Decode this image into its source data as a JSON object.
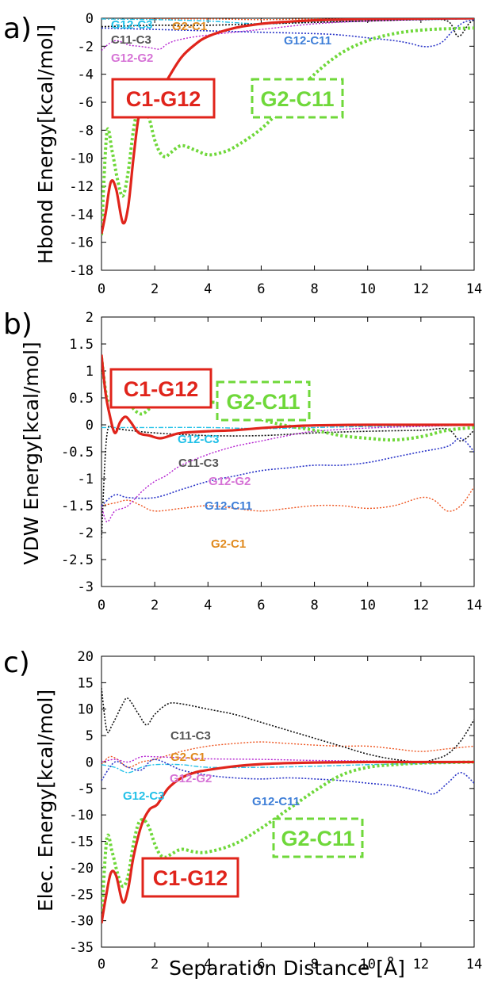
{
  "xlabel": "Separation Distance  [Å]",
  "colors": {
    "C1-G12": "#e0241b",
    "G2-C11": "#6fd83a",
    "G12-C3": "#23c1e8",
    "G2-C1": "#e08a1e",
    "C11-C3": "#111111",
    "G12-G2": "#d673d6",
    "G12-C11": "#2a35c8",
    "G2-C1-line": "#ee5520",
    "G12-G2-line": "#b420d0",
    "C11-C3-label": "#555555",
    "G12-C11-label": "#3f7fd8"
  },
  "chart_data": [
    {
      "type": "line",
      "panel": "a)",
      "ylabel": "Hbond Energy[kcal/mol]",
      "xlim": [
        0,
        14
      ],
      "ylim": [
        -18,
        0
      ],
      "xticks": [
        0,
        2,
        4,
        6,
        8,
        10,
        12,
        14
      ],
      "yticks": [
        0,
        -2,
        -4,
        -6,
        -8,
        -10,
        -12,
        -14,
        -16,
        -18
      ],
      "series": [
        {
          "name": "C1-G12",
          "x": [
            0,
            0.15,
            0.35,
            0.55,
            0.8,
            1.0,
            1.2,
            1.4,
            1.6,
            1.8,
            2.0,
            2.3,
            2.5,
            3,
            3.5,
            4,
            5,
            6,
            7,
            8,
            9,
            10,
            11,
            12,
            13,
            14
          ],
          "y": [
            -15.4,
            -14,
            -11.7,
            -12.2,
            -14.6,
            -13.5,
            -10,
            -7,
            -6.1,
            -5.8,
            -5.5,
            -5.1,
            -4.3,
            -2.8,
            -1.9,
            -1.3,
            -0.7,
            -0.4,
            -0.25,
            -0.15,
            -0.1,
            -0.05,
            -0.03,
            -0.02,
            -0.01,
            0
          ]
        },
        {
          "name": "G2-C11",
          "x": [
            0,
            0.2,
            0.4,
            0.6,
            0.8,
            1.0,
            1.2,
            1.4,
            1.6,
            1.8,
            2.0,
            2.2,
            2.4,
            2.6,
            3.0,
            3.5,
            4.0,
            4.5,
            5,
            6,
            7,
            8,
            9,
            10,
            11,
            12,
            13,
            14
          ],
          "y": [
            -15.5,
            -8.2,
            -9.5,
            -11.5,
            -12.7,
            -11,
            -8,
            -6.2,
            -6.1,
            -7.2,
            -8.7,
            -9.6,
            -9.9,
            -9.6,
            -9.1,
            -9.4,
            -9.75,
            -9.6,
            -9.2,
            -7.9,
            -6.0,
            -4.0,
            -2.5,
            -1.6,
            -1.1,
            -0.85,
            -0.75,
            -0.7
          ]
        },
        {
          "name": "G12-C3",
          "x": [
            0,
            2,
            4,
            6,
            8,
            10,
            12,
            14
          ],
          "y": [
            -0.05,
            -0.1,
            -0.2,
            -0.4,
            -0.25,
            -0.15,
            -0.1,
            -0.05
          ]
        },
        {
          "name": "G2-C1",
          "x": [
            0,
            2,
            4,
            6,
            8,
            10,
            12,
            14
          ],
          "y": [
            -0.05,
            -0.05,
            -0.05,
            -0.1,
            -0.05,
            -0.05,
            -0.05,
            -0.02
          ]
        },
        {
          "name": "C11-C3",
          "x": [
            0,
            1,
            2,
            4,
            6,
            8,
            10,
            12,
            13,
            13.4,
            13.8,
            14
          ],
          "y": [
            -0.6,
            -0.55,
            -0.5,
            -0.5,
            -0.4,
            -0.3,
            -0.2,
            -0.1,
            -0.2,
            -1.3,
            -0.4,
            -0.1
          ]
        },
        {
          "name": "G12-G2",
          "x": [
            0,
            0.3,
            0.6,
            1.0,
            1.4,
            1.8,
            2.2,
            2.5,
            3,
            4,
            6,
            8,
            10,
            12,
            14
          ],
          "y": [
            -2.3,
            -1.8,
            -1.6,
            -1.9,
            -2.0,
            -2.1,
            -2.2,
            -1.8,
            -1.5,
            -1.2,
            -0.8,
            -0.4,
            -0.2,
            -0.1,
            -0.05
          ]
        },
        {
          "name": "G12-C11",
          "x": [
            0,
            2,
            4,
            6,
            8,
            9,
            10,
            11,
            11.6,
            12,
            12.4,
            12.8,
            13.2,
            13.6,
            14
          ],
          "y": [
            -0.7,
            -0.8,
            -0.9,
            -1.0,
            -1.1,
            -1.2,
            -1.4,
            -1.6,
            -1.8,
            -2.0,
            -2.0,
            -1.7,
            -0.9,
            -0.3,
            -0.1
          ]
        }
      ],
      "labels": [
        {
          "text": "G12-C3",
          "series": "G12-C3"
        },
        {
          "text": "G2-C1",
          "series": "G2-C1"
        },
        {
          "text": "C11-C3",
          "series": "C11-C3"
        },
        {
          "text": "G12-G2",
          "series": "G12-G2"
        },
        {
          "text": "G12-C11",
          "series": "G12-C11"
        },
        {
          "text": "C1-G12",
          "series": "C1-G12"
        },
        {
          "text": "G2-C11",
          "series": "G2-C11"
        }
      ]
    },
    {
      "type": "line",
      "panel": "b)",
      "ylabel": "VDW Energy[kcal/mol]",
      "xlim": [
        0,
        14
      ],
      "ylim": [
        -3,
        2
      ],
      "xticks": [
        0,
        2,
        4,
        6,
        8,
        10,
        12,
        14
      ],
      "yticks": [
        2,
        1.5,
        1,
        0.5,
        0,
        -0.5,
        -1,
        -1.5,
        -2,
        -2.5,
        -3
      ],
      "series": [
        {
          "name": "C1-G12",
          "x": [
            0,
            0.15,
            0.3,
            0.5,
            0.7,
            0.9,
            1.1,
            1.4,
            1.8,
            2.2,
            2.6,
            3,
            4,
            5,
            6,
            7,
            8,
            10,
            12,
            14
          ],
          "y": [
            1.3,
            0.6,
            0.2,
            -0.15,
            0.05,
            0.15,
            0.05,
            -0.15,
            -0.2,
            -0.25,
            -0.2,
            -0.15,
            -0.12,
            -0.1,
            -0.06,
            -0.03,
            -0.01,
            0,
            0,
            0
          ]
        },
        {
          "name": "G2-C11",
          "x": [
            0,
            0.2,
            0.4,
            0.6,
            0.8,
            1.0,
            1.2,
            1.5,
            1.8,
            2.1,
            2.4,
            2.7,
            3.0,
            3.5,
            4.0,
            4.5,
            5,
            6,
            7,
            8,
            9,
            10,
            11,
            12,
            13,
            14
          ],
          "y": [
            1.25,
            0.5,
            0.45,
            0.65,
            0.75,
            0.5,
            0.3,
            0.2,
            0.3,
            0.45,
            0.5,
            0.45,
            0.35,
            0.4,
            0.42,
            0.4,
            0.3,
            0.1,
            -0.02,
            -0.1,
            -0.2,
            -0.25,
            -0.28,
            -0.22,
            -0.1,
            -0.05
          ]
        },
        {
          "name": "G12-C3",
          "x": [
            0,
            2,
            4,
            6,
            8,
            10,
            12,
            14
          ],
          "y": [
            -0.05,
            -0.05,
            -0.05,
            -0.07,
            -0.05,
            -0.03,
            -0.02,
            -0.01
          ]
        },
        {
          "name": "G2-C1",
          "x": [
            0,
            0.5,
            1,
            1.5,
            2,
            3,
            4,
            5,
            6,
            7,
            8,
            9,
            10,
            11,
            12,
            12.5,
            13,
            13.5,
            14
          ],
          "y": [
            -1.5,
            -1.45,
            -1.4,
            -1.5,
            -1.6,
            -1.55,
            -1.5,
            -1.55,
            -1.6,
            -1.55,
            -1.5,
            -1.5,
            -1.55,
            -1.5,
            -1.35,
            -1.4,
            -1.6,
            -1.5,
            -1.15
          ]
        },
        {
          "name": "C11-C3",
          "x": [
            0,
            0.2,
            0.5,
            1,
            2,
            4,
            6,
            8,
            10,
            12,
            13,
            13.5,
            14
          ],
          "y": [
            -2.1,
            -0.2,
            -0.08,
            -0.1,
            -0.15,
            -0.2,
            -0.2,
            -0.15,
            -0.12,
            -0.1,
            -0.08,
            -0.3,
            -0.1
          ]
        },
        {
          "name": "G12-G2",
          "x": [
            0,
            0.2,
            0.5,
            0.8,
            1.0,
            1.3,
            1.6,
            2.0,
            2.4,
            3,
            4,
            5,
            6,
            7,
            8,
            10,
            12,
            14
          ],
          "y": [
            -1.5,
            -1.8,
            -1.6,
            -1.55,
            -1.5,
            -1.35,
            -1.2,
            -1.05,
            -0.95,
            -0.75,
            -0.55,
            -0.4,
            -0.3,
            -0.2,
            -0.12,
            -0.06,
            -0.03,
            0
          ]
        },
        {
          "name": "G12-C11",
          "x": [
            0,
            0.5,
            1,
            2,
            3,
            4,
            5,
            6,
            7,
            8,
            9,
            10,
            11,
            12,
            13,
            13.5,
            14
          ],
          "y": [
            -1.5,
            -1.3,
            -1.35,
            -1.35,
            -1.2,
            -1.05,
            -0.95,
            -0.85,
            -0.8,
            -0.75,
            -0.75,
            -0.7,
            -0.6,
            -0.5,
            -0.4,
            -0.25,
            -0.5
          ]
        }
      ],
      "labels": [
        {
          "text": "C1-G12",
          "series": "C1-G12"
        },
        {
          "text": "G2-C11",
          "series": "G2-C11"
        },
        {
          "text": "G12-C3",
          "series": "G12-C3"
        },
        {
          "text": "C11-C3",
          "series": "C11-C3"
        },
        {
          "text": "G12-G2",
          "series": "G12-G2"
        },
        {
          "text": "G12-C11",
          "series": "G12-C11"
        },
        {
          "text": "G2-C1",
          "series": "G2-C1"
        }
      ]
    },
    {
      "type": "line",
      "panel": "c)",
      "ylabel": "Elec. Energy[kcal/mol]",
      "xlim": [
        0,
        14
      ],
      "ylim": [
        -35,
        20
      ],
      "xticks": [
        0,
        2,
        4,
        6,
        8,
        10,
        12,
        14
      ],
      "yticks": [
        20,
        15,
        10,
        5,
        0,
        -5,
        -10,
        -15,
        -20,
        -25,
        -30,
        -35
      ],
      "series": [
        {
          "name": "C1-G12",
          "x": [
            0,
            0.15,
            0.35,
            0.55,
            0.8,
            1.0,
            1.2,
            1.5,
            1.8,
            2.1,
            2.5,
            3,
            3.5,
            4,
            5,
            6,
            7,
            8,
            10,
            12,
            14
          ],
          "y": [
            -30.5,
            -26,
            -21,
            -21.5,
            -26.5,
            -24,
            -18,
            -12,
            -9,
            -8,
            -5,
            -3,
            -2,
            -1.5,
            -0.8,
            -0.4,
            -0.2,
            -0.1,
            0,
            0,
            0
          ]
        },
        {
          "name": "G2-C11",
          "x": [
            0,
            0.2,
            0.4,
            0.6,
            0.8,
            1.0,
            1.2,
            1.4,
            1.6,
            1.8,
            2.0,
            2.2,
            2.4,
            2.6,
            3.0,
            3.5,
            4,
            5,
            6,
            7,
            8,
            9,
            10,
            11,
            12,
            13,
            14
          ],
          "y": [
            -30,
            -14.5,
            -17,
            -21,
            -23.5,
            -21.5,
            -15.5,
            -11.5,
            -11,
            -12.5,
            -15.5,
            -17.5,
            -18,
            -17.5,
            -16.5,
            -17,
            -17,
            -15.5,
            -12.5,
            -9,
            -5.5,
            -2.5,
            -1,
            -0.5,
            -0.2,
            -0.1,
            0
          ]
        },
        {
          "name": "G12-C3",
          "x": [
            0,
            0.5,
            1,
            1.5,
            2,
            3,
            4,
            6,
            8,
            10,
            12,
            14
          ],
          "y": [
            -0.5,
            -1,
            -2,
            -1,
            -0.5,
            -0.5,
            -1,
            -1,
            -0.8,
            -0.5,
            -0.3,
            -0.1
          ]
        },
        {
          "name": "G2-C1",
          "x": [
            0,
            0.3,
            0.6,
            1,
            1.5,
            2,
            3,
            4,
            5,
            6,
            7,
            8,
            9,
            10,
            11,
            12,
            13,
            14
          ],
          "y": [
            -0.5,
            1,
            0.5,
            -1,
            0,
            0.5,
            2,
            3,
            3.5,
            3.8,
            3.5,
            3.2,
            3,
            3,
            2.5,
            2,
            2.5,
            3
          ]
        },
        {
          "name": "C11-C3",
          "x": [
            0,
            0.2,
            0.4,
            0.8,
            1.0,
            1.4,
            1.7,
            2.0,
            2.5,
            3,
            4,
            5,
            6,
            7,
            8,
            9,
            10,
            11,
            12,
            12.5,
            13,
            13.5,
            14
          ],
          "y": [
            14,
            6,
            7,
            11,
            12,
            9,
            7,
            9,
            11,
            11,
            10,
            9,
            7.5,
            6,
            4.5,
            3,
            1.5,
            0.5,
            0,
            0.5,
            1.5,
            4,
            8
          ]
        },
        {
          "name": "G12-G2",
          "x": [
            0,
            0.5,
            1,
            1.5,
            2,
            3,
            4,
            6,
            8,
            10,
            12,
            14
          ],
          "y": [
            0,
            0.5,
            0,
            1,
            1,
            0.8,
            0.6,
            0.5,
            0.3,
            0.2,
            0.1,
            0
          ]
        },
        {
          "name": "G12-C11",
          "x": [
            0,
            0.5,
            1,
            1.5,
            2,
            3,
            4,
            5,
            6,
            7,
            8,
            9,
            10,
            11,
            12,
            12.5,
            13,
            13.5,
            14
          ],
          "y": [
            -3.5,
            0,
            -1,
            -1.5,
            0.5,
            -1.5,
            -2.5,
            -3,
            -3.2,
            -3,
            -3.2,
            -3.5,
            -4,
            -4.5,
            -5.5,
            -6,
            -4,
            -2,
            -4
          ]
        }
      ],
      "labels": [
        {
          "text": "C11-C3",
          "series": "C11-C3"
        },
        {
          "text": "G2-C1",
          "series": "G2-C1"
        },
        {
          "text": "G12-G2",
          "series": "G12-G2"
        },
        {
          "text": "G12-C3",
          "series": "G12-C3"
        },
        {
          "text": "G12-C11",
          "series": "G12-C11"
        },
        {
          "text": "G2-C11",
          "series": "G2-C11"
        },
        {
          "text": "C1-G12",
          "series": "C1-G12"
        }
      ]
    }
  ]
}
